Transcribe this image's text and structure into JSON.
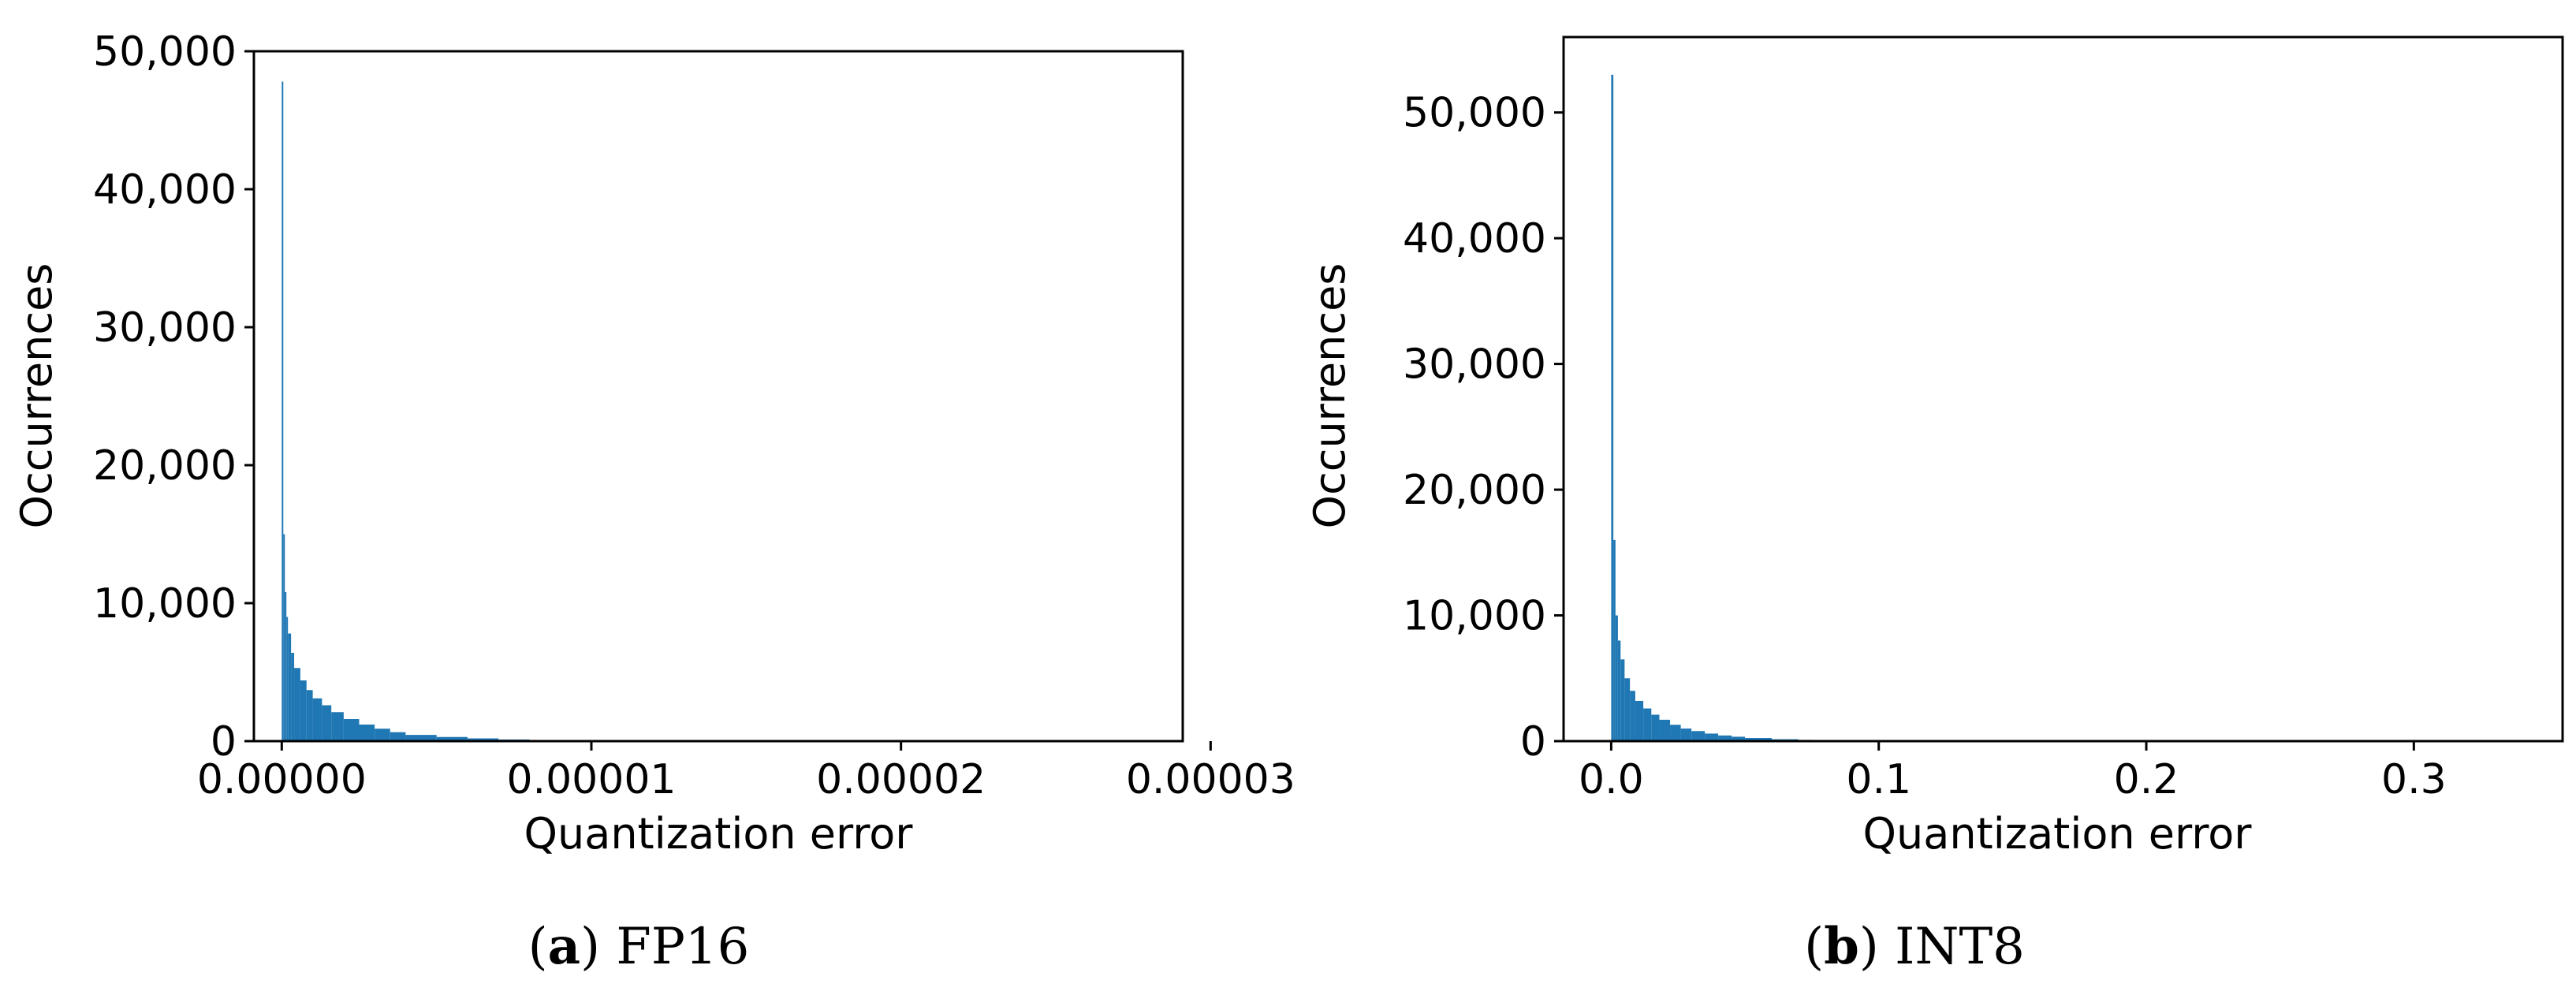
{
  "chart_data": [
    {
      "type": "bar",
      "histogram": true,
      "caption": {
        "letter": "a",
        "text": "FP16"
      },
      "xlabel": "Quantization error",
      "ylabel": "Occurrences",
      "xlim": [
        -9e-07,
        2.91e-05
      ],
      "ylim": [
        0,
        50000
      ],
      "xticks": [
        0,
        1e-05,
        2e-05,
        3e-05
      ],
      "xtick_labels": [
        "0.00000",
        "0.00001",
        "0.00002",
        "0.00003"
      ],
      "yticks": [
        0,
        10000,
        20000,
        30000,
        40000,
        50000
      ],
      "ytick_labels": [
        "0",
        "10,000",
        "20,000",
        "30,000",
        "40,000",
        "50,000"
      ],
      "bar_color": "#1f77b4",
      "x": [
        0.0,
        5e-08,
        1e-07,
        1.5e-07,
        2e-07,
        3e-07,
        4e-07,
        6e-07,
        8e-07,
        1e-06,
        1.3e-06,
        1.6e-06,
        2e-06,
        2.5e-06,
        3e-06,
        3.5e-06,
        4e-06,
        5e-06,
        6e-06,
        7e-06,
        8e-06
      ],
      "values": [
        47800,
        15000,
        10800,
        9000,
        7800,
        6400,
        5300,
        4400,
        3700,
        3100,
        2600,
        2100,
        1600,
        1200,
        900,
        650,
        450,
        300,
        200,
        120,
        60
      ]
    },
    {
      "type": "bar",
      "histogram": true,
      "caption": {
        "letter": "b",
        "text": "INT8"
      },
      "xlabel": "Quantization error",
      "ylabel": "Occurrences",
      "xlim": [
        -0.0178,
        0.3556
      ],
      "ylim": [
        0,
        56000
      ],
      "xticks": [
        0,
        0.1,
        0.2,
        0.3
      ],
      "xtick_labels": [
        "0.0",
        "0.1",
        "0.2",
        "0.3"
      ],
      "yticks": [
        0,
        10000,
        20000,
        30000,
        40000,
        50000
      ],
      "ytick_labels": [
        "0",
        "10,000",
        "20,000",
        "30,000",
        "40,000",
        "50,000"
      ],
      "bar_color": "#1f77b4",
      "x": [
        0.0,
        0.0008,
        0.0016,
        0.0025,
        0.0035,
        0.005,
        0.007,
        0.009,
        0.012,
        0.015,
        0.018,
        0.022,
        0.026,
        0.03,
        0.035,
        0.04,
        0.045,
        0.05,
        0.06,
        0.07,
        0.075
      ],
      "values": [
        53000,
        16000,
        10000,
        8000,
        6500,
        5000,
        4000,
        3200,
        2600,
        2100,
        1700,
        1300,
        1000,
        800,
        600,
        450,
        350,
        250,
        150,
        100,
        60
      ]
    }
  ]
}
